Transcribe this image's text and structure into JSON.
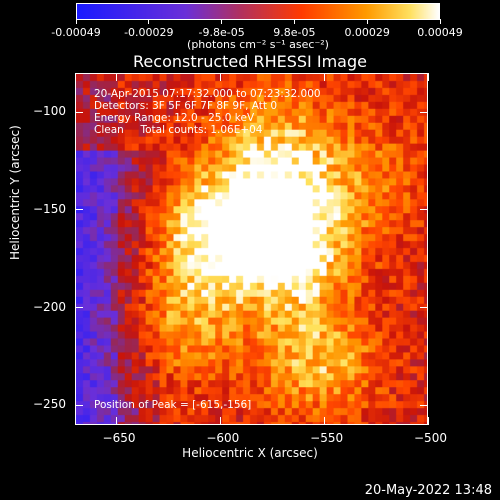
{
  "colorbar": {
    "tick_labels": [
      "-0.00049",
      "-0.00029",
      "-9.8e-05",
      "9.8e-05",
      "0.00029",
      "0.00049"
    ],
    "units": "(photons cm⁻² s⁻¹ asec⁻²)"
  },
  "title": "Reconstructed RHESSI Image",
  "info": {
    "line1": "20-Apr-2015 07:17:32.000 to 07:23:32.000",
    "line2": "Detectors: 3F 5F 6F 7F 8F 9F, Att 0",
    "line3": "Energy Range: 12.0 - 25.0 keV",
    "line4": "Clean     Total counts: 1.06E+04",
    "peak": "Position of Peak = [-615,-156]"
  },
  "chart_data": {
    "type": "heatmap",
    "title": "Reconstructed RHESSI Image",
    "xlabel": "Heliocentric X (arcsec)",
    "ylabel": "Heliocentric Y (arcsec)",
    "x_ticks": [
      -650,
      -600,
      -550,
      -500
    ],
    "y_ticks": [
      -100,
      -150,
      -200,
      -250
    ],
    "xlim": [
      -670,
      -500
    ],
    "ylim": [
      -260,
      -80
    ],
    "peak": [
      -615,
      -156
    ],
    "value_range": [
      -0.00049,
      0.00049
    ]
  },
  "footer": {
    "date": "20-May-2022 13:48"
  }
}
